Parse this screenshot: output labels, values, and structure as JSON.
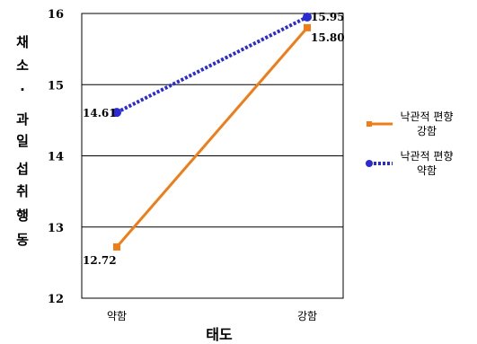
{
  "chart_data": {
    "type": "line",
    "categories": [
      "약함",
      "강함"
    ],
    "series": [
      {
        "name": "낙관적 편향 강함",
        "values": [
          12.72,
          15.8
        ],
        "color": "#f07c17",
        "marker": "square",
        "line_style": "solid"
      },
      {
        "name": "낙관적 편향 약함",
        "values": [
          14.61,
          15.95
        ],
        "color": "#2b2bd6",
        "marker": "circle",
        "line_style": "dotted"
      }
    ],
    "data_labels": [
      [
        "12.72",
        "15.80"
      ],
      [
        "14.61",
        "15.95"
      ]
    ],
    "xlabel": "태도",
    "ylabel": "채소 · 과일 섭취행동",
    "ylim": [
      12,
      16
    ],
    "yticks": [
      12,
      13,
      14,
      15,
      16
    ],
    "grid": true,
    "legend_position": "right",
    "legend_entries": [
      {
        "line1": "낙관적 편향",
        "line2": "강함"
      },
      {
        "line1": "낙관적 편향",
        "line2": "약함"
      }
    ]
  }
}
